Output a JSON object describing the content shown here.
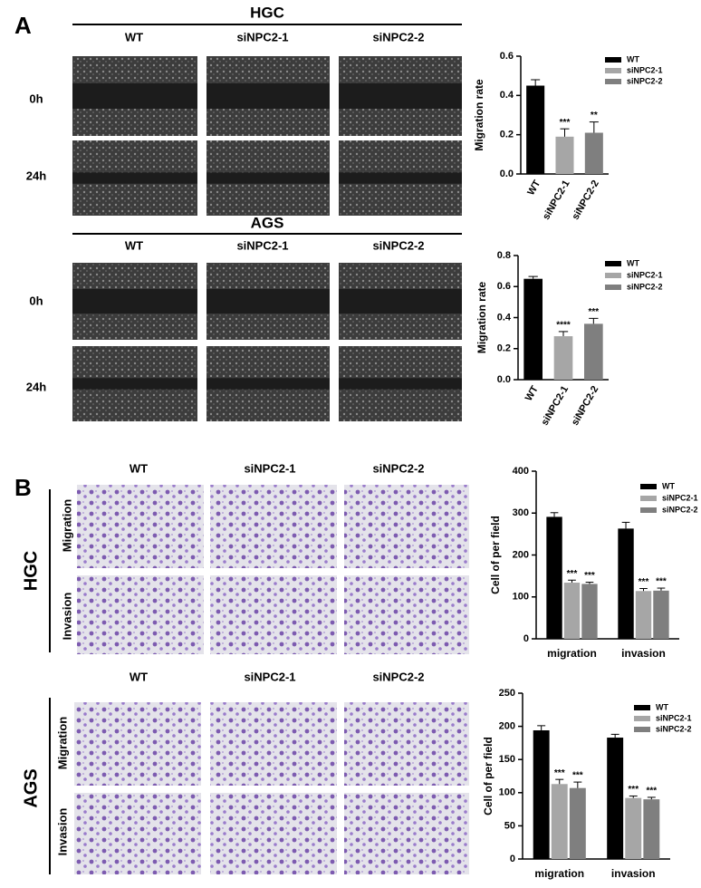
{
  "panels": [
    {
      "label": "A",
      "blocks": [
        {
          "title": "HGC",
          "columns": [
            "WT",
            "siNPC2-1",
            "siNPC2-2"
          ],
          "rows": [
            "0h",
            "24h"
          ]
        },
        {
          "title": "AGS",
          "columns": [
            "WT",
            "siNPC2-1",
            "siNPC2-2"
          ],
          "rows": [
            "0h",
            "24h"
          ]
        }
      ]
    },
    {
      "label": "B",
      "blocks": [
        {
          "title": "HGC",
          "columns": [
            "WT",
            "siNPC2-1",
            "siNPC2-2"
          ],
          "rows": [
            "Migration",
            "Invasion"
          ]
        },
        {
          "title": "AGS",
          "columns": [
            "WT",
            "siNPC2-1",
            "siNPC2-2"
          ],
          "rows": [
            "Migration",
            "Invasion"
          ]
        }
      ]
    }
  ],
  "chart_data": [
    {
      "type": "bar",
      "ylabel": "Migration rate",
      "categories": [
        "WT",
        "siNPC2-1",
        "siNPC2-2"
      ],
      "values": [
        0.45,
        0.19,
        0.21
      ],
      "errors": [
        0.03,
        0.04,
        0.055
      ],
      "significance": [
        null,
        "***",
        "**"
      ],
      "colors": [
        "#000000",
        "#a6a6a6",
        "#7f7f7f"
      ],
      "ylim": [
        0,
        0.6
      ],
      "yticks": [
        {
          "value": 0,
          "label": "0.0"
        },
        0.2,
        0.4,
        0.6
      ]
    },
    {
      "type": "bar",
      "ylabel": "Migration rate",
      "categories": [
        "WT",
        "siNPC2-1",
        "siNPC2-2"
      ],
      "values": [
        0.65,
        0.28,
        0.36
      ],
      "errors": [
        0.015,
        0.03,
        0.035
      ],
      "significance": [
        null,
        "****",
        "***"
      ],
      "colors": [
        "#000000",
        "#a6a6a6",
        "#7f7f7f"
      ],
      "ylim": [
        0,
        0.8
      ],
      "yticks": [
        {
          "value": 0,
          "label": "0.0"
        },
        0.2,
        0.4,
        0.6,
        0.8
      ]
    },
    {
      "type": "bar",
      "ylabel": "Cell of per field",
      "categories": [
        "migration",
        "invasion"
      ],
      "series": [
        {
          "name": "WT",
          "color": "#000000",
          "values": [
            291,
            263
          ],
          "errors": [
            10,
            15
          ]
        },
        {
          "name": "siNPC2-1",
          "color": "#a6a6a6",
          "values": [
            134,
            114
          ],
          "errors": [
            6,
            6
          ],
          "significance": [
            "***",
            "***"
          ]
        },
        {
          "name": "siNPC2-2",
          "color": "#7f7f7f",
          "values": [
            131,
            115
          ],
          "errors": [
            4,
            6
          ],
          "significance": [
            "***",
            "***"
          ]
        }
      ],
      "ylim": [
        0,
        400
      ],
      "yticks": [
        0,
        100,
        200,
        300,
        400
      ]
    },
    {
      "type": "bar",
      "ylabel": "Cell of per field",
      "categories": [
        "migration",
        "invasion"
      ],
      "series": [
        {
          "name": "WT",
          "color": "#000000",
          "values": [
            194,
            183
          ],
          "errors": [
            7,
            5
          ]
        },
        {
          "name": "siNPC2-1",
          "color": "#a6a6a6",
          "values": [
            113,
            92
          ],
          "errors": [
            7,
            3
          ],
          "significance": [
            "***",
            "***"
          ]
        },
        {
          "name": "siNPC2-2",
          "color": "#7f7f7f",
          "values": [
            107,
            90
          ],
          "errors": [
            9,
            3
          ],
          "significance": [
            "***",
            "***"
          ]
        }
      ],
      "ylim": [
        0,
        250
      ],
      "yticks": [
        0,
        50,
        100,
        150,
        200,
        250
      ]
    }
  ]
}
